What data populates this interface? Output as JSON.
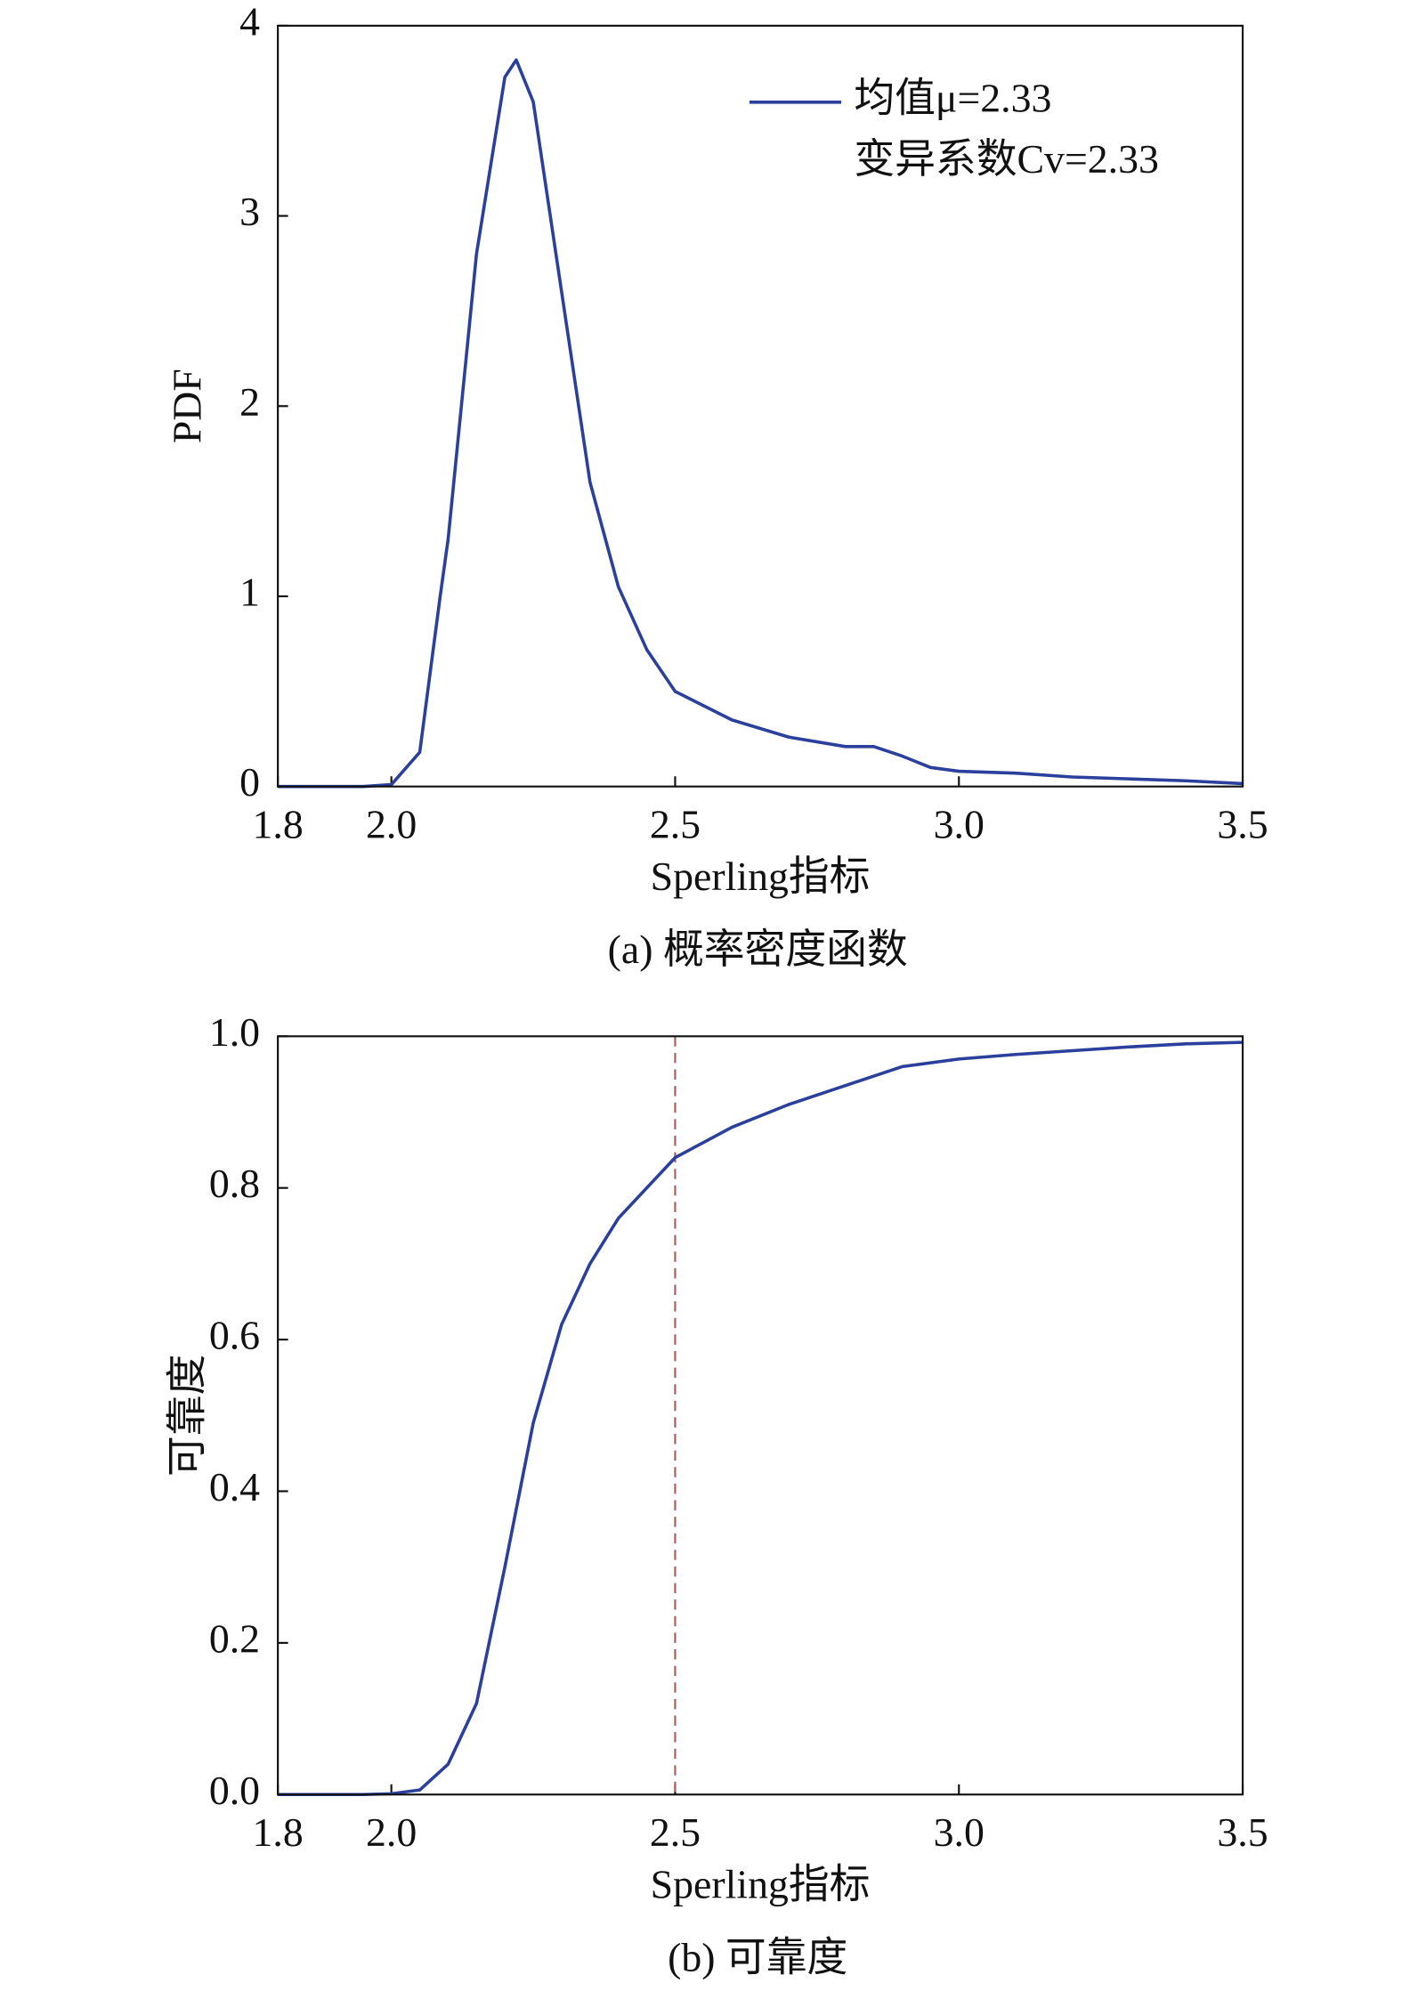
{
  "chart_data": [
    {
      "type": "line",
      "caption": "(a) 概率密度函数",
      "xlabel": "Sperling指标",
      "ylabel": "PDF",
      "x": [
        1.8,
        1.95,
        2.0,
        2.05,
        2.086,
        2.1,
        2.15,
        2.2,
        2.22,
        2.25,
        2.3,
        2.35,
        2.4,
        2.45,
        2.5,
        2.6,
        2.7,
        2.8,
        2.85,
        2.9,
        2.95,
        3.0,
        3.1,
        3.2,
        3.3,
        3.4,
        3.5
      ],
      "series": [
        {
          "name": "均值μ=2.33",
          "color": "#2b3f9c",
          "values": [
            0,
            0,
            0.01,
            0.18,
            1.0,
            1.3,
            2.8,
            3.73,
            3.82,
            3.6,
            2.6,
            1.6,
            1.05,
            0.72,
            0.5,
            0.35,
            0.26,
            0.21,
            0.21,
            0.16,
            0.1,
            0.08,
            0.07,
            0.05,
            0.04,
            0.03,
            0.015
          ]
        }
      ],
      "legend_note": "变异系数Cv=2.33",
      "legend": "upper right",
      "xlim": [
        1.8,
        3.5
      ],
      "xticks": [
        1.8,
        {
          "value": 2,
          "label": "2.0"
        },
        2.5,
        {
          "value": 3,
          "label": "3.0"
        },
        3.5
      ],
      "ylim": [
        0,
        4
      ],
      "yticks": [
        0,
        1,
        2,
        3,
        4
      ]
    },
    {
      "type": "line",
      "caption": "(b) 可靠度",
      "xlabel": "Sperling指标",
      "ylabel": "可靠度",
      "x": [
        1.8,
        1.95,
        2.0,
        2.05,
        2.1,
        2.15,
        2.2,
        2.25,
        2.3,
        2.35,
        2.4,
        2.45,
        2.5,
        2.6,
        2.7,
        2.8,
        2.9,
        3.0,
        3.1,
        3.2,
        3.3,
        3.4,
        3.5
      ],
      "series": [
        {
          "color": "#2b3f9c",
          "values": [
            0,
            0,
            0.001,
            0.006,
            0.04,
            0.12,
            0.3,
            0.49,
            0.62,
            0.7,
            0.76,
            0.8,
            0.84,
            0.88,
            0.91,
            0.935,
            0.96,
            0.97,
            0.976,
            0.981,
            0.986,
            0.99,
            0.992
          ]
        }
      ],
      "vline": {
        "x": 2.5,
        "color": "#b0585a"
      },
      "xlim": [
        1.8,
        3.5
      ],
      "xticks": [
        1.8,
        {
          "value": 2,
          "label": "2.0"
        },
        2.5,
        {
          "value": 3,
          "label": "3.0"
        },
        3.5
      ],
      "ylim": [
        0,
        1
      ],
      "yticks": [
        {
          "value": 0,
          "label": "0.0"
        },
        0.2,
        0.4,
        0.6,
        0.8,
        {
          "value": 1,
          "label": "1.0"
        }
      ]
    }
  ]
}
